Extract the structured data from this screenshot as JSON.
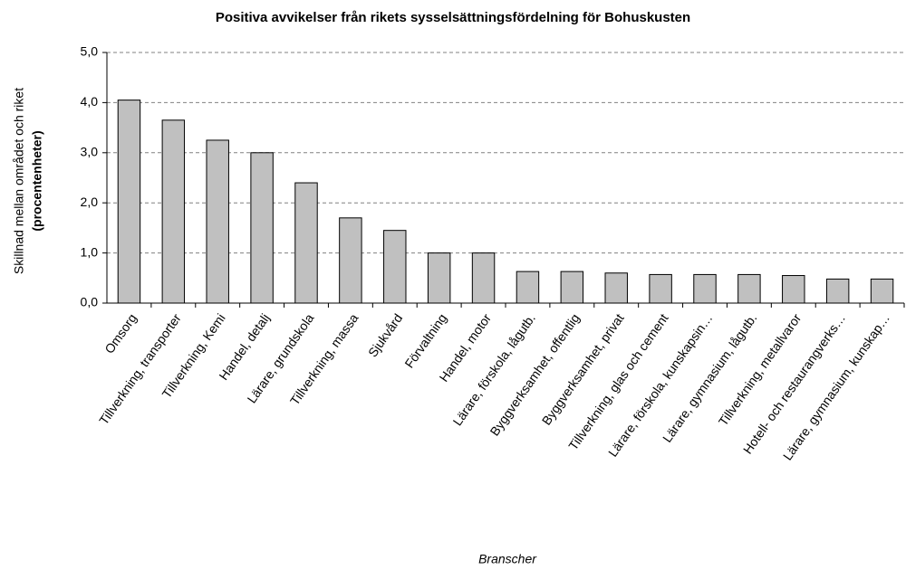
{
  "chart_data": {
    "type": "bar",
    "title": "Positiva avvikelser från rikets sysselsättningsfördelning för Bohuskusten",
    "ylabel": [
      "Skillnad mellan området och riket",
      "(procentenheter)"
    ],
    "xlabel": "Branscher",
    "categories": [
      "Omsorg",
      "Tillverkning, transporter",
      "Tillverkning, Kemi",
      "Handel, detalj",
      "Lärare, grundskola",
      "Tillverkning, massa",
      "Sjukvård",
      "Förvaltning",
      "Handel, motor",
      "Lärare, förskola, lågutb.",
      "Byggverksamhet, offentlig",
      "Byggverksamhet, privat",
      "Tillverkning, glas och cement",
      "Lärare, förskola, kunskapsin…",
      "Lärare, gymnasium, lågutb.",
      "Tillverkning, metallvaror",
      "Hotell- och restaurangverks…",
      "Lärare, gymnasium, kunskap…"
    ],
    "values": [
      4.05,
      3.65,
      3.25,
      3.0,
      2.4,
      1.7,
      1.45,
      1.0,
      1.0,
      0.63,
      0.63,
      0.6,
      0.57,
      0.57,
      0.57,
      0.55,
      0.48,
      0.48
    ],
    "color": "#c0c0c0",
    "ylim": [
      0,
      5
    ],
    "yticks": [
      {
        "value": 0,
        "label": "0,0"
      },
      {
        "value": 1,
        "label": "1,0"
      },
      {
        "value": 2,
        "label": "2,0"
      },
      {
        "value": 3,
        "label": "3,0"
      },
      {
        "value": 4,
        "label": "4,0"
      },
      {
        "value": 5,
        "label": "5,0"
      }
    ],
    "grid": true
  }
}
